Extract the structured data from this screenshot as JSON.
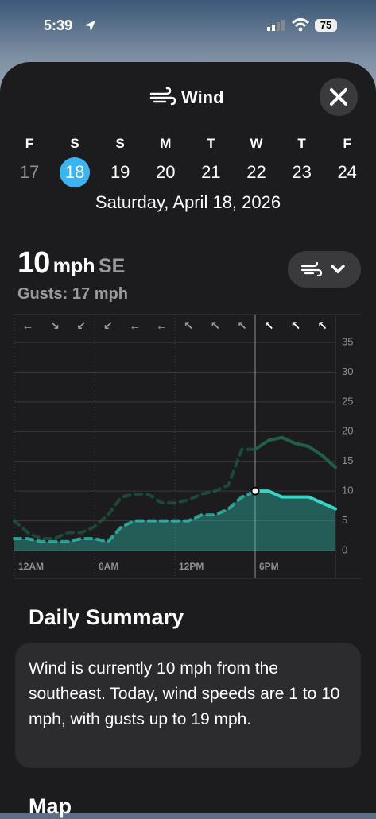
{
  "status_bar": {
    "time": "5:39",
    "battery": "75"
  },
  "header": {
    "title": "Wind"
  },
  "week": {
    "letters": [
      "F",
      "S",
      "S",
      "M",
      "T",
      "W",
      "T",
      "F"
    ],
    "dates": [
      "17",
      "18",
      "19",
      "20",
      "21",
      "22",
      "23",
      "24"
    ],
    "selected_date": "Saturday, April 18, 2026"
  },
  "current": {
    "speed": "10",
    "unit": "mph",
    "direction": "SE",
    "gusts": "Gusts: 17 mph"
  },
  "chart_data": {
    "type": "line",
    "directions": [
      "←",
      "↘",
      "↙",
      "↙",
      "←",
      "←",
      "↖",
      "↖",
      "↖",
      "↖",
      "↖",
      "↖"
    ],
    "x": [
      0,
      1,
      2,
      3,
      4,
      5,
      6,
      7,
      8,
      9,
      10,
      11,
      12,
      13,
      14,
      15,
      16,
      17,
      18,
      19,
      20,
      21,
      22,
      23,
      24
    ],
    "xlim": [
      0,
      24
    ],
    "xticks": [
      {
        "value": 0,
        "label": "12AM"
      },
      {
        "value": 6,
        "label": "6AM"
      },
      {
        "value": 12,
        "label": "12PM"
      },
      {
        "value": 18,
        "label": "6PM"
      }
    ],
    "ylim": [
      0,
      35
    ],
    "yticks": [
      0,
      5,
      10,
      15,
      20,
      25,
      30,
      35
    ],
    "now": 18,
    "series": [
      {
        "color": "#35d6c5",
        "fill": true,
        "values": [
          2,
          2,
          1.5,
          1.5,
          1.5,
          2,
          2,
          1.5,
          4,
          5,
          5,
          5,
          5,
          5,
          6,
          6,
          7,
          9,
          10,
          10,
          9,
          9,
          9,
          8,
          7
        ]
      },
      {
        "color": "#1f6147",
        "fill": false,
        "values": [
          5,
          3,
          2,
          2,
          3,
          3,
          4,
          6,
          9,
          9.5,
          9.5,
          8,
          8,
          8.5,
          9.5,
          10,
          11,
          17,
          17,
          18.5,
          19,
          18,
          17.5,
          16,
          14
        ]
      }
    ]
  },
  "summary": {
    "title": "Daily Summary",
    "text": "Wind is currently 10 mph from the southeast. Today, wind speeds are 1 to 10 mph, with gusts up to 19 mph."
  },
  "map": {
    "title": "Map"
  }
}
